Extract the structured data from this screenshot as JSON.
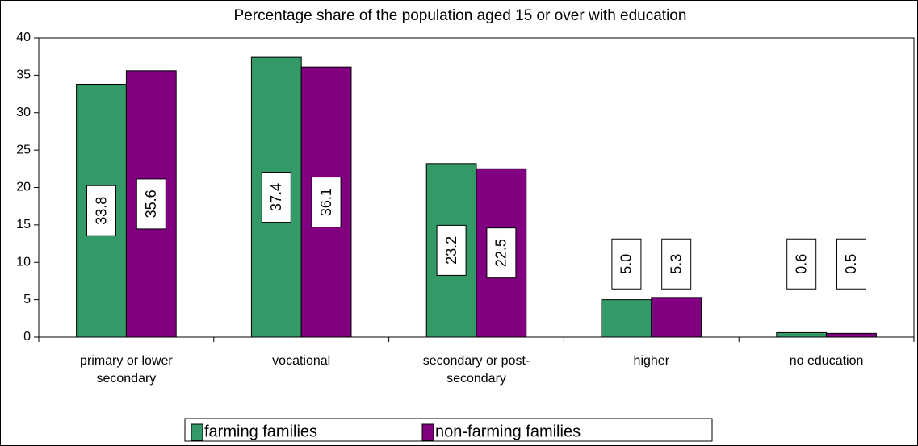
{
  "chart_data": {
    "type": "bar",
    "title": "Percentage share of the population aged 15 or over with education",
    "categories": [
      "primary or lower secondary",
      "vocational",
      "secondary or post-secondary",
      "higher",
      "no education"
    ],
    "series": [
      {
        "name": "farming families",
        "color": "#339966",
        "values": [
          33.8,
          37.4,
          23.2,
          5.0,
          0.6
        ],
        "value_labels": [
          "33.8",
          "37.4",
          "23.2",
          "5.0",
          "0.6"
        ]
      },
      {
        "name": "non-farming families",
        "color": "#800080",
        "values": [
          35.6,
          36.1,
          22.5,
          5.3,
          0.5
        ],
        "value_labels": [
          "35.6",
          "36.1",
          "22.5",
          "5.3",
          "0.5"
        ]
      }
    ],
    "ylim": [
      0,
      40
    ],
    "yticks": [
      0,
      5,
      10,
      15,
      20,
      25,
      30,
      35,
      40
    ],
    "legend": "bottom"
  }
}
